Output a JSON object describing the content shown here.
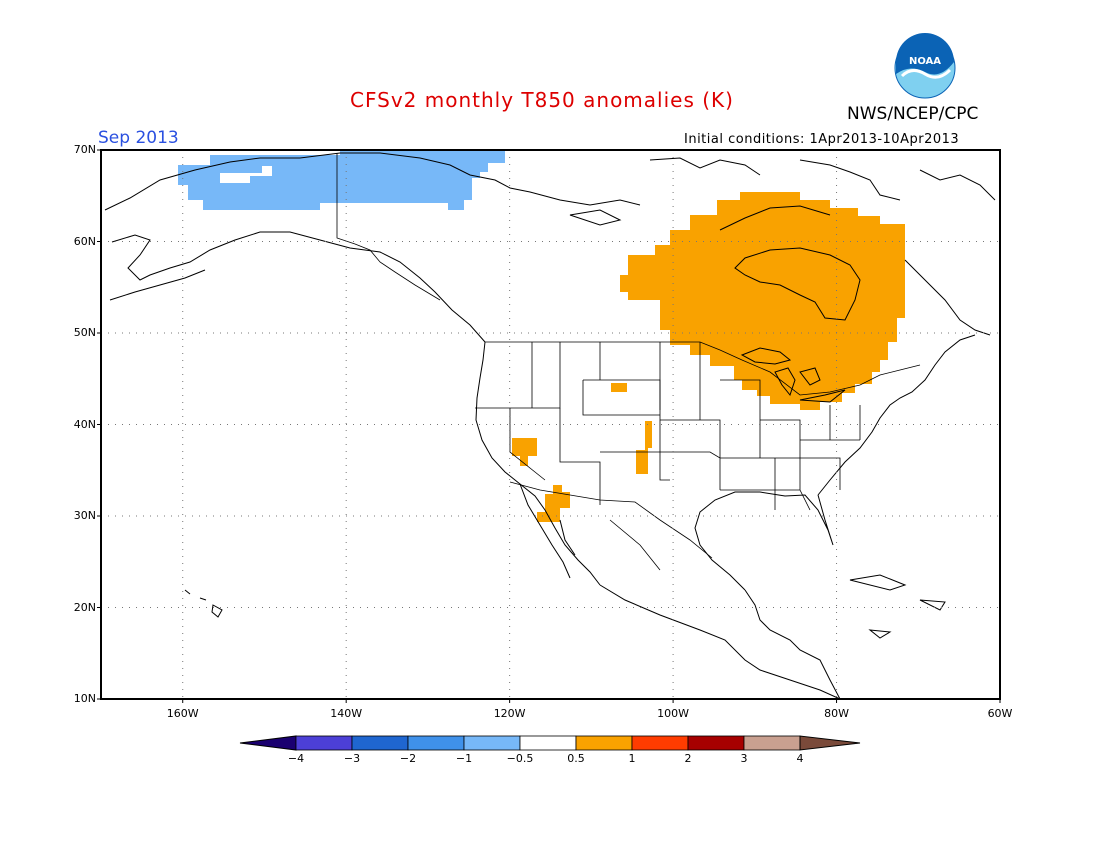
{
  "title": "CFSv2 monthly T850 anomalies (K)",
  "agency": "NWS/NCEP/CPC",
  "logo": {
    "icon": "noaa-logo-icon",
    "text": "NOAA",
    "colors": [
      "#0b63b5",
      "#7fd0f0",
      "#ffffff"
    ]
  },
  "period": "Sep 2013",
  "initial_conditions": "Initial conditions: 1Apr2013-10Apr2013",
  "map": {
    "lat_labels": [
      "70N",
      "60N",
      "50N",
      "40N",
      "30N",
      "20N",
      "10N"
    ],
    "lon_labels": [
      "160W",
      "140W",
      "120W",
      "100W",
      "80W",
      "60W"
    ],
    "extent": {
      "lon": [
        -170,
        -60
      ],
      "lat": [
        10,
        70
      ]
    },
    "grid": "dotted",
    "anomaly_regions": [
      {
        "name": "alaska-arctic-cold",
        "range": "-1 to -0.5",
        "color": "#77b8f8"
      },
      {
        "name": "central-canada-great-lakes-warm",
        "range": "0.5 to 1",
        "color": "#f9a200"
      },
      {
        "name": "colorado-spot-warm",
        "range": "0.5 to 1",
        "color": "#f9a200"
      },
      {
        "name": "new-mexico-warm",
        "range": "0.5 to 1",
        "color": "#f9a200"
      },
      {
        "name": "nevada-warm",
        "range": "0.5 to 1",
        "color": "#f9a200"
      },
      {
        "name": "gulf-of-california-warm",
        "range": "0.5 to 1",
        "color": "#f9a200"
      }
    ]
  },
  "colorbar": {
    "ticks": [
      "-4",
      "-3",
      "-2",
      "-1",
      "-0.5",
      "0.5",
      "1",
      "2",
      "3",
      "4"
    ],
    "colors": [
      "#1a0070",
      "#4c3fd6",
      "#1f66d0",
      "#3f91ea",
      "#77b8f8",
      "#ffffff",
      "#f9a200",
      "#ff3c00",
      "#a60000",
      "#c9a090",
      "#7a4a3a"
    ]
  }
}
